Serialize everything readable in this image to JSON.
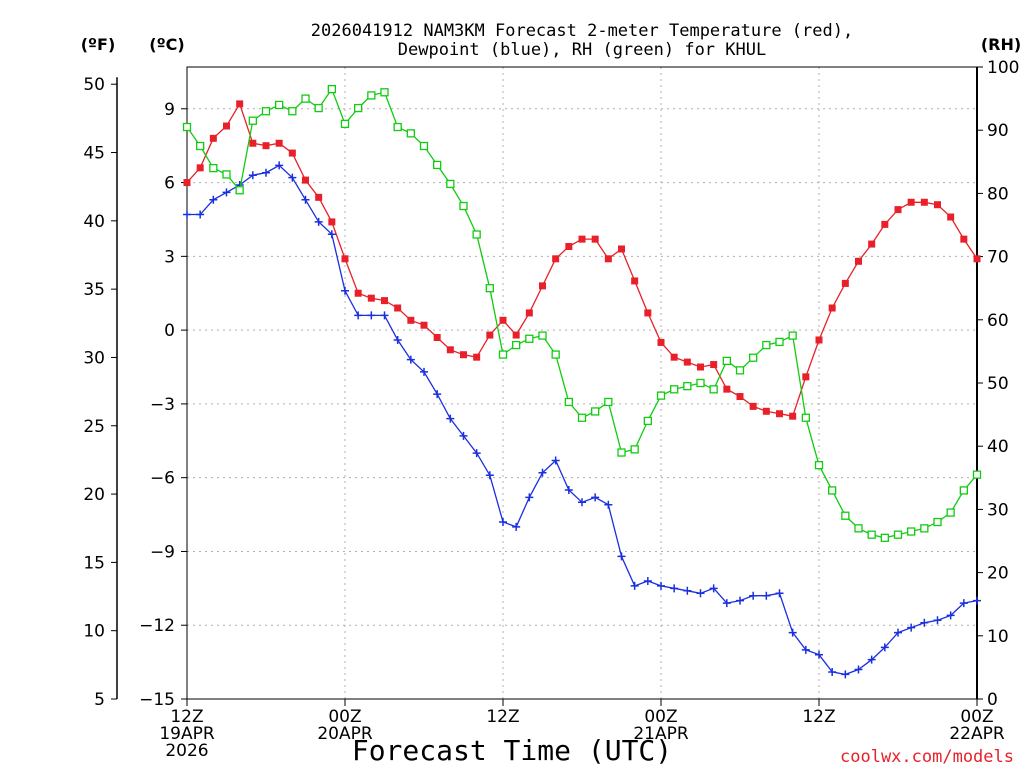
{
  "chart_data": {
    "type": "line",
    "title_line1": "2026041912 NAM3KM Forecast 2-meter Temperature (red),",
    "title_line2": "Dewpoint (blue), RH (green) for KHUL",
    "xlabel": "Forecast Time (UTC)",
    "credit": "coolwx.com/models",
    "units": {
      "left_outer": "(ºF)",
      "left_inner": "(ºC)",
      "right": "(RH)"
    },
    "x_ticks": [
      {
        "hour": 0,
        "line1": "12Z",
        "line2": "19APR",
        "line3": "2026"
      },
      {
        "hour": 12,
        "line1": "00Z",
        "line2": "20APR",
        "line3": ""
      },
      {
        "hour": 24,
        "line1": "12Z",
        "line2": "",
        "line3": ""
      },
      {
        "hour": 36,
        "line1": "00Z",
        "line2": "21APR",
        "line3": ""
      },
      {
        "hour": 48,
        "line1": "12Z",
        "line2": "",
        "line3": ""
      },
      {
        "hour": 60,
        "line1": "00Z",
        "line2": "22APR",
        "line3": ""
      }
    ],
    "x_range": [
      0,
      60
    ],
    "celsius_range": [
      -15,
      10.7
    ],
    "celsius_ticks": [
      "9",
      "6",
      "3",
      "0",
      "−3",
      "−6",
      "−9",
      "−12",
      "−15"
    ],
    "fahrenheit_ticks": [
      "50",
      "45",
      "40",
      "35",
      "30",
      "25",
      "20",
      "15",
      "10",
      "5"
    ],
    "rh_range": [
      0,
      100
    ],
    "rh_ticks": [
      "100",
      "90",
      "80",
      "70",
      "60",
      "50",
      "40",
      "30",
      "20",
      "10",
      "0"
    ],
    "colors": {
      "temperature": "#e8202a",
      "dewpoint": "#1a2fe0",
      "rh": "#11cc11",
      "grid": "#b0b0b0"
    },
    "series": [
      {
        "name": "Temperature",
        "unit": "C",
        "values": [
          6.0,
          6.6,
          7.8,
          8.3,
          9.2,
          7.6,
          7.5,
          7.6,
          7.2,
          6.1,
          5.4,
          4.4,
          2.9,
          1.5,
          1.3,
          1.2,
          0.9,
          0.4,
          0.2,
          -0.3,
          -0.8,
          -1.0,
          -1.1,
          -0.2,
          0.4,
          -0.2,
          0.7,
          1.8,
          2.9,
          3.4,
          3.7,
          3.7,
          2.9,
          3.3,
          2.0,
          0.7,
          -0.5,
          -1.1,
          -1.3,
          -1.5,
          -1.4,
          -2.4,
          -2.7,
          -3.1,
          -3.3,
          -3.4,
          -3.5,
          -1.9,
          -0.4,
          0.9,
          1.9,
          2.8,
          3.5,
          4.3,
          4.9,
          5.2,
          5.2,
          5.1,
          4.6,
          3.7,
          2.9
        ]
      },
      {
        "name": "Dewpoint",
        "unit": "C",
        "values": [
          4.7,
          4.7,
          5.3,
          5.6,
          5.9,
          6.3,
          6.4,
          6.7,
          6.2,
          5.3,
          4.4,
          3.9,
          1.6,
          0.6,
          0.6,
          0.6,
          -0.4,
          -1.2,
          -1.7,
          -2.6,
          -3.6,
          -4.3,
          -5.0,
          -5.9,
          -7.8,
          -8.0,
          -6.8,
          -5.8,
          -5.3,
          -6.5,
          -7.0,
          -6.8,
          -7.1,
          -9.2,
          -10.4,
          -10.2,
          -10.4,
          -10.5,
          -10.6,
          -10.7,
          -10.5,
          -11.1,
          -11.0,
          -10.8,
          -10.8,
          -10.7,
          -12.3,
          -13.0,
          -13.2,
          -13.9,
          -14.0,
          -13.8,
          -13.4,
          -12.9,
          -12.3,
          -12.1,
          -11.9,
          -11.8,
          -11.6,
          -11.1,
          -11.0
        ]
      },
      {
        "name": "RH",
        "unit": "%",
        "values": [
          90.5,
          87.5,
          84,
          83,
          80.5,
          91.5,
          93,
          94,
          93,
          95,
          93.5,
          96.5,
          91,
          93.5,
          95.5,
          96,
          90.5,
          89.5,
          87.5,
          84.5,
          81.5,
          78,
          73.5,
          65,
          54.5,
          56,
          57,
          57.5,
          54.5,
          47,
          44.5,
          45.5,
          47,
          39,
          39.5,
          44,
          48,
          49,
          49.5,
          50,
          49,
          53.5,
          52,
          54,
          56,
          56.5,
          57.5,
          44.5,
          37,
          33,
          29,
          27,
          26,
          25.5,
          26,
          26.5,
          27,
          28,
          29.5,
          33,
          35.5
        ]
      }
    ]
  }
}
